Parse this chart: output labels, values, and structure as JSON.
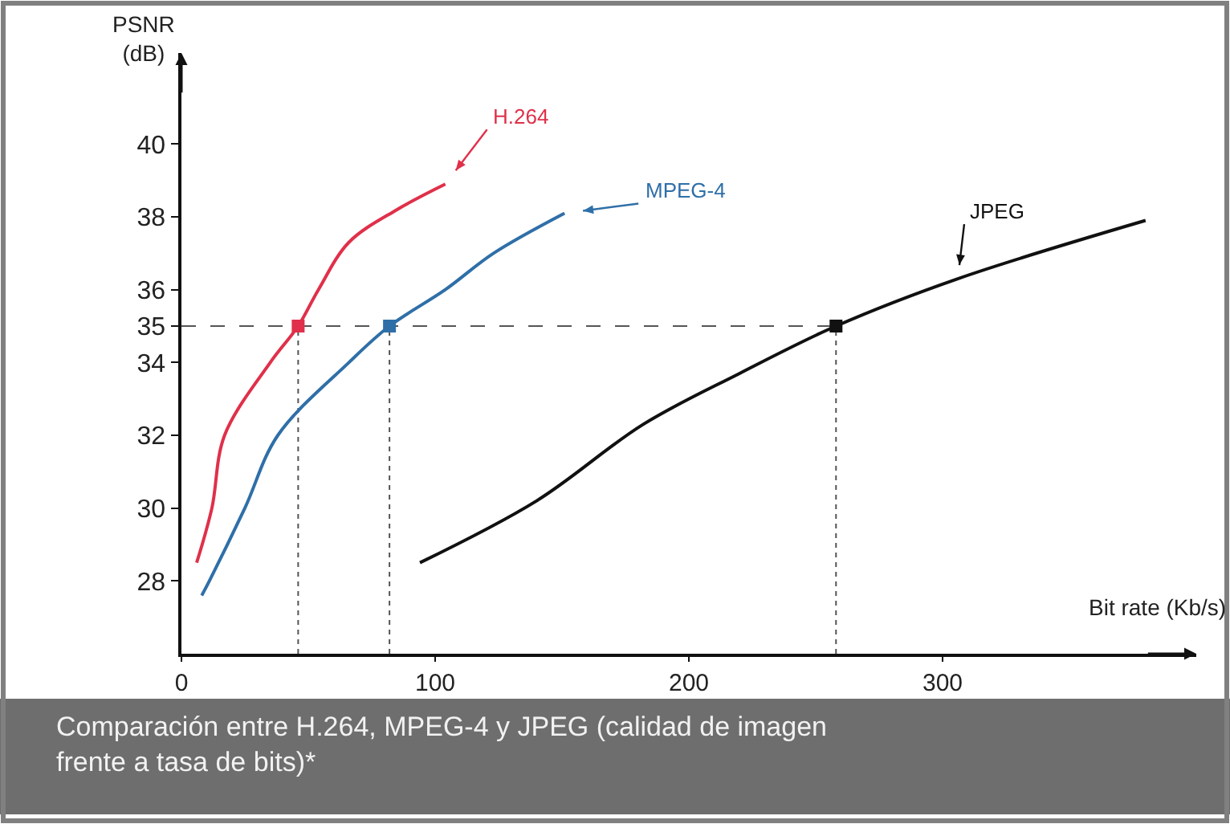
{
  "chart_data": {
    "type": "line",
    "xlabel": "Bit rate (Kb/s)",
    "ylabel": "PSNR (dB)",
    "xlim": [
      0,
      400
    ],
    "xticks": [
      0,
      100,
      200,
      300
    ],
    "ylim": [
      26,
      42.5
    ],
    "yticks": [
      28,
      30,
      32,
      34,
      35,
      36,
      38,
      40
    ],
    "grid": false,
    "legend": false,
    "marker": "none",
    "line_style": "solid",
    "series": [
      {
        "name": "H.264",
        "color": "#e0304a",
        "x": [
          6,
          12,
          17,
          35,
          46,
          54,
          66,
          85,
          104
        ],
        "values": [
          28.5,
          30,
          32,
          34,
          35,
          36,
          37.3,
          38.2,
          38.9
        ]
      },
      {
        "name": "MPEG-4",
        "color": "#2f6fa8",
        "x": [
          8,
          11,
          25,
          38,
          66,
          82,
          104,
          123,
          151
        ],
        "values": [
          27.6,
          28,
          30,
          32,
          34,
          35,
          36,
          37,
          38.1
        ]
      },
      {
        "name": "JPEG",
        "color": "#111111",
        "x": [
          94,
          140,
          182,
          220,
          258,
          306,
          380
        ],
        "values": [
          28.5,
          30.2,
          32.3,
          33.7,
          35,
          36.3,
          37.9
        ]
      },
      {
        "type": "scatter",
        "marker": "square",
        "x": [
          46,
          82,
          258
        ],
        "values": [
          35,
          35,
          35
        ],
        "colors": [
          "#e0304a",
          "#2f6fa8",
          "#111111"
        ]
      }
    ],
    "ref_lines": [
      {
        "axis": "y",
        "value": 35,
        "line_style": "dashed",
        "color": "#555555"
      },
      {
        "axis": "x",
        "value": 46,
        "line_style": "dotted",
        "color": "#555555"
      },
      {
        "axis": "x",
        "value": 82,
        "line_style": "dotted",
        "color": "#555555"
      },
      {
        "axis": "x",
        "value": 258,
        "line_style": "dotted",
        "color": "#555555"
      }
    ],
    "annotations": [
      "Comparación entre H.264, MPEG-4 y JPEG (calidad de imagen frente a tasa de bits)*"
    ]
  }
}
